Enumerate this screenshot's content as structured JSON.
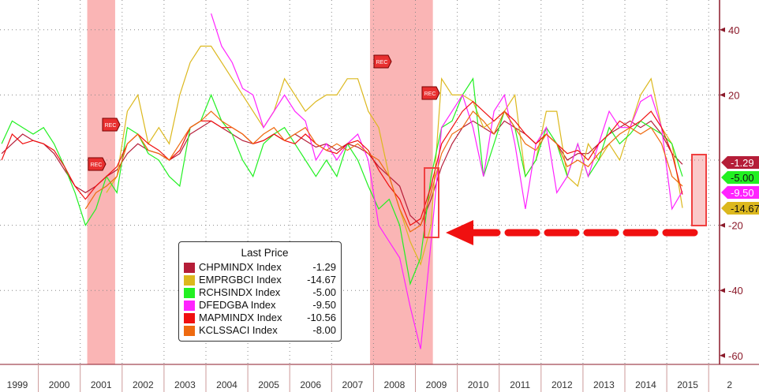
{
  "chart_data": {
    "type": "line",
    "legend": {
      "title": "Last Price",
      "placement": "bottom-left"
    },
    "x_period": "quarterly",
    "x_start": "1999-Q1",
    "x_tick_labels": [
      "1999",
      "2000",
      "2001",
      "2002",
      "2003",
      "2004",
      "2005",
      "2006",
      "2007",
      "2008",
      "2009",
      "2010",
      "2011",
      "2012",
      "2013",
      "2014",
      "2015",
      "2"
    ],
    "y_tick_labels": [
      40,
      20,
      -20,
      -40,
      -60
    ],
    "ylim": [
      -62,
      48
    ],
    "y_axis_side": "right",
    "grid": true,
    "recessions": [
      [
        "2001-03",
        "2001-11"
      ],
      [
        "2007-12",
        "2009-06"
      ]
    ],
    "recession_color": "#f9a8a8",
    "rec_flag_label": "REC",
    "series": [
      {
        "name": "CHPMINDX Index",
        "last": "-1.29",
        "color": "#b51d38",
        "values": [
          2,
          5,
          8,
          6,
          5,
          2,
          -3,
          -8,
          -10,
          -8,
          -5,
          -3,
          2,
          5,
          3,
          2,
          0,
          2,
          8,
          10,
          12,
          10,
          8,
          6,
          5,
          6,
          8,
          6,
          8,
          6,
          4,
          5,
          3,
          5,
          4,
          2,
          -2,
          -5,
          -8,
          -17,
          -20,
          -12,
          -2,
          5,
          10,
          12,
          10,
          8,
          12,
          10,
          8,
          5,
          8,
          5,
          0,
          2,
          2,
          5,
          8,
          10,
          12,
          10,
          12,
          8,
          2,
          -1.29
        ]
      },
      {
        "name": "EMPRGBCI Index",
        "last": "-14.67",
        "color": "#dcb81e",
        "values": [
          null,
          null,
          null,
          null,
          null,
          null,
          null,
          null,
          null,
          null,
          -10,
          -5,
          15,
          20,
          5,
          10,
          5,
          20,
          30,
          35,
          35,
          30,
          25,
          20,
          15,
          10,
          15,
          25,
          20,
          15,
          18,
          20,
          20,
          25,
          25,
          15,
          10,
          -5,
          -15,
          -25,
          -32,
          -20,
          25,
          20,
          20,
          18,
          10,
          12,
          15,
          20,
          -5,
          0,
          15,
          15,
          -5,
          -8,
          5,
          0,
          5,
          0,
          10,
          20,
          25,
          10,
          5,
          -14.67
        ]
      },
      {
        "name": "RCHSINDX Index",
        "last": "-5.00",
        "color": "#22f022",
        "values": [
          5,
          12,
          10,
          8,
          10,
          5,
          -2,
          -10,
          -20,
          -15,
          -5,
          -10,
          10,
          8,
          2,
          0,
          -5,
          -8,
          10,
          12,
          20,
          12,
          8,
          0,
          -5,
          5,
          8,
          10,
          5,
          0,
          -5,
          0,
          -5,
          5,
          0,
          -8,
          -15,
          -12,
          -20,
          -38,
          -30,
          -5,
          10,
          12,
          20,
          25,
          -5,
          5,
          15,
          10,
          -5,
          0,
          10,
          5,
          -5,
          5,
          -5,
          0,
          10,
          5,
          8,
          12,
          10,
          8,
          5,
          -5
        ]
      },
      {
        "name": "DFEDGBA Index",
        "last": "-9.50",
        "color": "#ff22ff",
        "values": [
          null,
          null,
          null,
          null,
          null,
          null,
          null,
          null,
          null,
          null,
          null,
          null,
          null,
          null,
          null,
          null,
          null,
          null,
          null,
          null,
          45,
          35,
          30,
          22,
          20,
          10,
          15,
          20,
          15,
          12,
          0,
          5,
          0,
          5,
          8,
          0,
          -20,
          -25,
          -30,
          -45,
          -58,
          -25,
          10,
          15,
          20,
          10,
          -5,
          15,
          20,
          5,
          -15,
          5,
          10,
          -10,
          -5,
          5,
          -5,
          5,
          15,
          10,
          10,
          18,
          20,
          10,
          -15,
          -9.5
        ]
      },
      {
        "name": "MAPMINDX Index",
        "last": "-10.56",
        "color": "#f01010",
        "values": [
          0,
          8,
          5,
          6,
          5,
          3,
          -2,
          -8,
          -12,
          -8,
          -5,
          -2,
          5,
          8,
          5,
          3,
          0,
          3,
          10,
          12,
          12,
          10,
          10,
          8,
          5,
          6,
          8,
          6,
          5,
          8,
          5,
          3,
          2,
          5,
          6,
          3,
          -3,
          -8,
          -12,
          -20,
          -18,
          -8,
          5,
          10,
          15,
          18,
          15,
          12,
          15,
          12,
          8,
          5,
          8,
          5,
          2,
          3,
          0,
          5,
          8,
          12,
          10,
          12,
          15,
          10,
          2,
          -10.56
        ]
      },
      {
        "name": "KCLSSACI Index",
        "last": "-8.00",
        "color": "#ee6a10",
        "values": [
          null,
          null,
          null,
          null,
          null,
          null,
          null,
          null,
          -15,
          -10,
          -8,
          -5,
          5,
          8,
          3,
          2,
          0,
          5,
          10,
          12,
          15,
          12,
          10,
          8,
          5,
          8,
          10,
          6,
          8,
          10,
          5,
          3,
          5,
          3,
          5,
          2,
          0,
          -5,
          -15,
          -22,
          -20,
          -10,
          2,
          8,
          10,
          15,
          12,
          8,
          15,
          10,
          5,
          3,
          8,
          5,
          -2,
          0,
          -2,
          2,
          5,
          8,
          10,
          8,
          10,
          5,
          -5,
          -8
        ]
      }
    ]
  }
}
